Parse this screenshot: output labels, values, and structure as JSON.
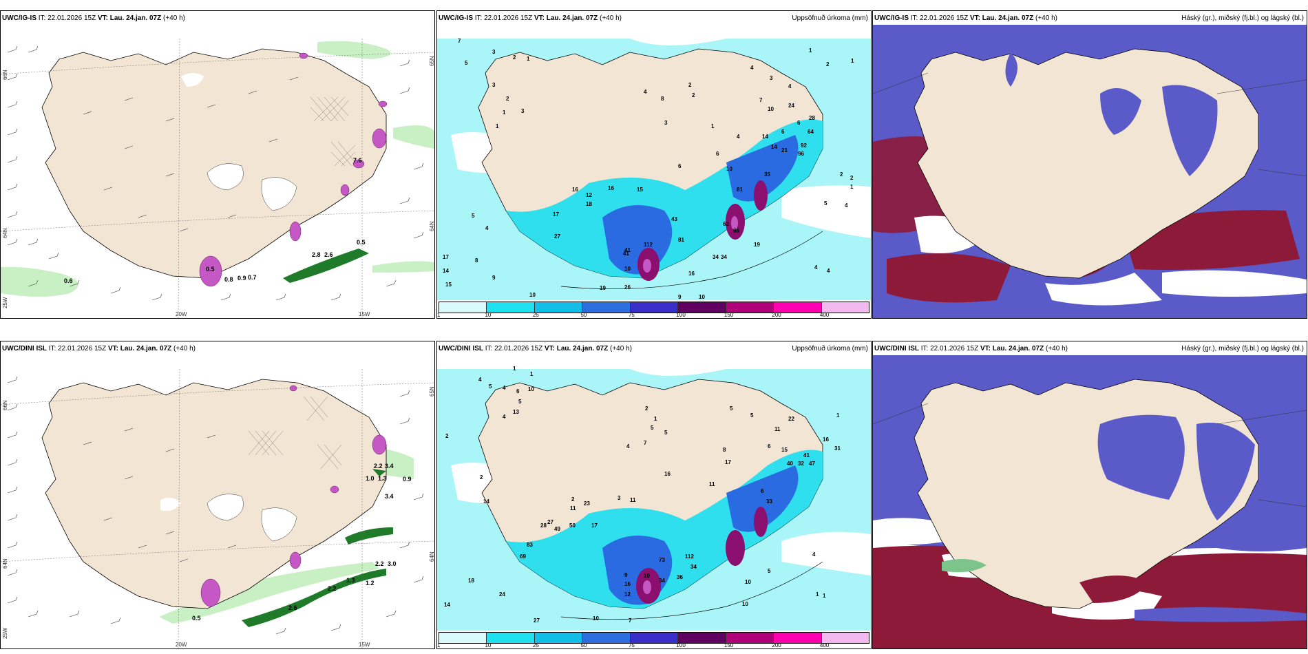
{
  "rows": [
    {
      "model": "UWC/IG-IS",
      "it_label": "IT: 22.01.2026 15Z",
      "vt_label": "VT: Lau. 24.jan. 07Z",
      "lead": "(+40 h)",
      "wind_labels": [
        "0.6",
        "0.8",
        "0.9",
        "0.7",
        "2.8",
        "0.5",
        "0.5",
        "7.6",
        "2.6"
      ],
      "precip_numbers": [
        "7",
        "5",
        "3",
        "2",
        "1",
        "3",
        "2",
        "1",
        "3",
        "1",
        "4",
        "8",
        "2",
        "2",
        "3",
        "1",
        "4",
        "3",
        "10",
        "4",
        "6",
        "6",
        "7",
        "14",
        "24",
        "28",
        "64",
        "2",
        "6",
        "4",
        "6",
        "14",
        "21",
        "92",
        "96",
        "35",
        "16",
        "15",
        "10",
        "81",
        "41",
        "16",
        "12",
        "18",
        "5",
        "17",
        "4",
        "27",
        "43",
        "62",
        "86",
        "81",
        "112",
        "41",
        "10",
        "17",
        "14",
        "15",
        "8",
        "9",
        "10",
        "19",
        "26",
        "16",
        "34",
        "34",
        "19",
        "9",
        "10",
        "5",
        "4",
        "4",
        "4",
        "2",
        "1",
        "1",
        "2",
        "1"
      ]
    },
    {
      "model": "UWC/DINI ISL",
      "it_label": "IT: 22.01.2026 15Z",
      "vt_label": "VT: Lau. 24.jan. 07Z",
      "lead": "(+40 h)",
      "wind_labels": [
        "0.5",
        "2.6",
        "3.4",
        "1.3",
        "1.2",
        "2.2",
        "3.0",
        "1.0",
        "1.3",
        "0.9",
        "2.2",
        "3.4",
        "2.2"
      ],
      "precip_numbers": [
        "1",
        "1",
        "4",
        "5",
        "4",
        "6",
        "5",
        "10",
        "13",
        "4",
        "2",
        "2",
        "2",
        "1",
        "5",
        "5",
        "4",
        "7",
        "5",
        "5",
        "11",
        "1",
        "22",
        "16",
        "31",
        "15",
        "40",
        "32",
        "47",
        "41",
        "8",
        "17",
        "11",
        "6",
        "6",
        "33",
        "16",
        "14",
        "23",
        "11",
        "2",
        "3",
        "11",
        "17",
        "28",
        "27",
        "50",
        "49",
        "83",
        "69",
        "73",
        "112",
        "34",
        "34",
        "36",
        "10",
        "9",
        "16",
        "12",
        "18",
        "24",
        "14",
        "27",
        "10",
        "7",
        "10",
        "10",
        "5",
        "4",
        "1",
        "1"
      ]
    }
  ],
  "titles": {
    "precip": "Uppsöfnuð úrkoma (mm)",
    "cloud": "Háský (gr.), miðský (fj.bl.) og lágský (bl.)"
  },
  "axis_labels": {
    "lat_top": "66N",
    "lat_mid": "64N",
    "lat_bottom": "25W",
    "lon_left": "20W",
    "lon_right": "15W",
    "right_top": "65N",
    "right_mid": "64N"
  },
  "colorbar": {
    "ticks": [
      "1",
      "10",
      "25",
      "50",
      "75",
      "100",
      "150",
      "200",
      "400"
    ],
    "colors": [
      "#d9fbfb",
      "#1ee0ee",
      "#12bde8",
      "#2e6fe0",
      "#3a2fc8",
      "#600060",
      "#b0007a",
      "#ff00b0",
      "#f3b8f0"
    ]
  },
  "colors": {
    "land": "#f3e5d3",
    "precip_sea": "#aaf5f8",
    "precip_mid": "#2fdfee",
    "precip_heavy": "#2a6be2",
    "precip_extreme": "#8a0f6e",
    "cloud_high": "#5a5ac8",
    "cloud_low": "#8e1a3a",
    "green": "#1f7a2a",
    "pink": "#c658c6"
  }
}
